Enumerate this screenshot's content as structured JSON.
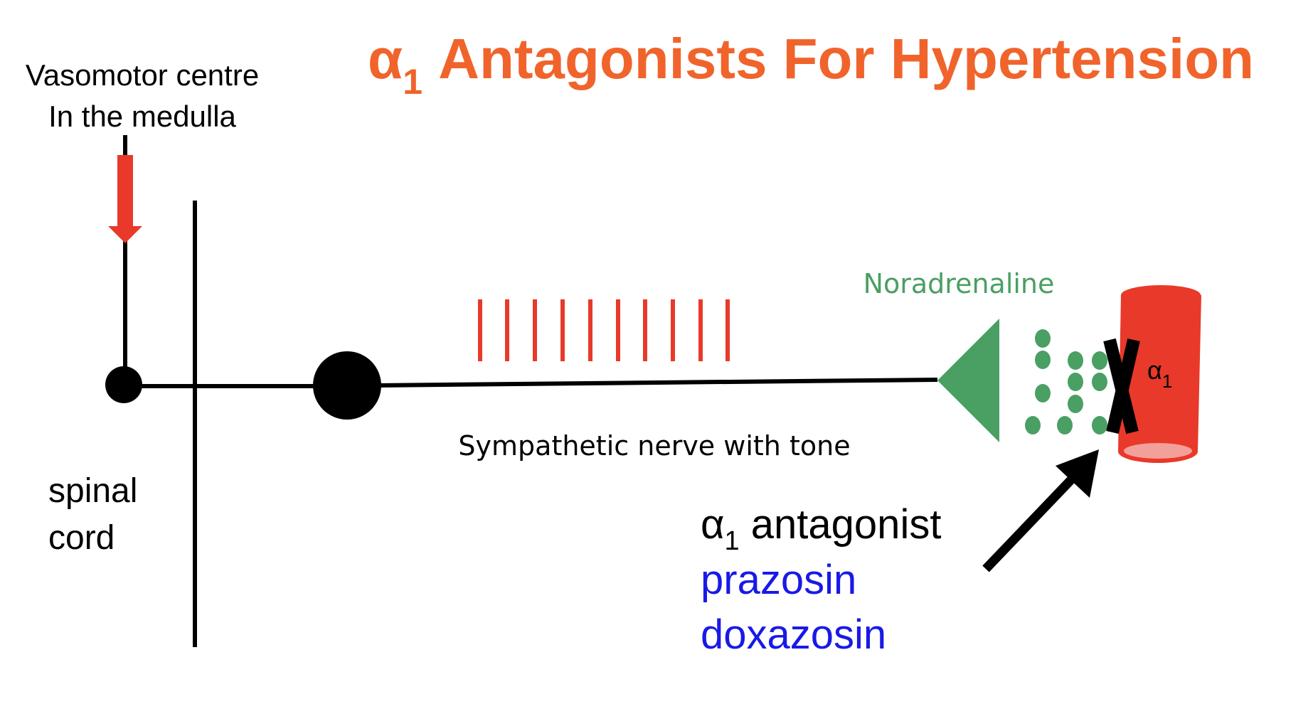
{
  "title": {
    "alpha": "α",
    "sub": "1",
    "text": " Antagonists For Hypertension"
  },
  "labels": {
    "vasomotor_line1": "Vasomotor centre",
    "vasomotor_line2": "In the medulla",
    "spinal_line1": "spinal",
    "spinal_line2": "cord",
    "sympathetic": "Sympathetic nerve with tone",
    "noradrenaline": "Noradrenaline",
    "receptor_alpha": "α",
    "receptor_sub": "1",
    "antagonist_alpha": "α",
    "antagonist_sub": "1",
    "antagonist_text": " antagonist",
    "drug1": "prazosin",
    "drug2": "doxazosin"
  },
  "colors": {
    "title": "#f0642c",
    "red": "#e8392a",
    "green": "#4a9f63",
    "black": "#000000",
    "blue": "#1919e6"
  },
  "nerve_impulse_count": 10
}
